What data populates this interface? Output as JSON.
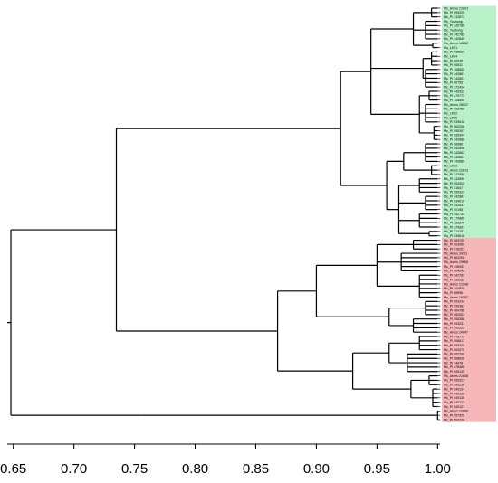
{
  "axis": {
    "ticks": [
      "0.65",
      "0.70",
      "0.75",
      "0.80",
      "0.85",
      "0.90",
      "0.95",
      "1.00"
    ],
    "tick_values": [
      0.65,
      0.7,
      0.75,
      0.8,
      0.85,
      0.9,
      0.95,
      1.0
    ],
    "range": [
      0.645,
      1.002
    ]
  },
  "colors": {
    "group_a": "#b8f0c8",
    "group_b": "#f7b6b9",
    "branch": "#000000"
  },
  "leaves": [
    {
      "label": "Ms_Ames 21823",
      "group": "a"
    },
    {
      "label": "Ms_PI 595325",
      "group": "a"
    },
    {
      "label": "Ms_PI 342873",
      "group": "a"
    },
    {
      "label": "Ms_Yuzhong",
      "group": "a"
    },
    {
      "label": "Ms_PI 342786",
      "group": "a"
    },
    {
      "label": "Ms_Yuzhong",
      "group": "a"
    },
    {
      "label": "Ms_PI 342789",
      "group": "a"
    },
    {
      "label": "Ms_PI 342849",
      "group": "a"
    },
    {
      "label": "Ms_Ames 18262",
      "group": "a"
    },
    {
      "label": "Ms_LK01",
      "group": "a"
    },
    {
      "label": "Ms_PI 535621",
      "group": "a"
    },
    {
      "label": "Ms_LK04",
      "group": "a"
    },
    {
      "label": "Ms_PI 90035",
      "group": "a"
    },
    {
      "label": "Ms_PI 90811",
      "group": "a"
    },
    {
      "label": "Ms_PI 108653",
      "group": "a"
    },
    {
      "label": "Ms_PI 342881",
      "group": "a"
    },
    {
      "label": "Ms_PI 342801",
      "group": "a"
    },
    {
      "label": "Ms_PI 90755",
      "group": "a"
    },
    {
      "label": "Ms_PI 172434",
      "group": "a"
    },
    {
      "label": "Ms_PI 442522",
      "group": "a"
    },
    {
      "label": "Ms_PI 479773",
      "group": "a"
    },
    {
      "label": "Ms_PI 108655",
      "group": "a"
    },
    {
      "label": "Ms_Ames 28037",
      "group": "a"
    },
    {
      "label": "Ms_PI 908750",
      "group": "a"
    },
    {
      "label": "Ms_LK02",
      "group": "a"
    },
    {
      "label": "Ms_LK05",
      "group": "a"
    },
    {
      "label": "Ms_PI 539611",
      "group": "a"
    },
    {
      "label": "Ms_PI 562298",
      "group": "a"
    },
    {
      "label": "Ms_PI 595397",
      "group": "a"
    },
    {
      "label": "Ms_PI 595304",
      "group": "a"
    },
    {
      "label": "Ms_PI 342888",
      "group": "a"
    },
    {
      "label": "Ms_PI 88986",
      "group": "a"
    },
    {
      "label": "Ms_PI 342896",
      "group": "a"
    },
    {
      "label": "Ms_PI 342863",
      "group": "a"
    },
    {
      "label": "Ms_PI 342801",
      "group": "a"
    },
    {
      "label": "Ms_PI 342889",
      "group": "a"
    },
    {
      "label": "Ms_LK03",
      "group": "a"
    },
    {
      "label": "Ms_Ames 22813",
      "group": "a"
    },
    {
      "label": "Ms_PI 342858",
      "group": "a"
    },
    {
      "label": "Ms_PI 342899",
      "group": "a"
    },
    {
      "label": "Ms_PI 552002",
      "group": "a"
    },
    {
      "label": "Ms_PI 31647",
      "group": "a"
    },
    {
      "label": "Ms_PI 595324",
      "group": "a"
    },
    {
      "label": "Ms_PI 342887",
      "group": "a"
    },
    {
      "label": "Ms_PI 634019",
      "group": "a"
    },
    {
      "label": "Ms_PI 342847",
      "group": "a"
    },
    {
      "label": "Ms_PI 90198",
      "group": "a"
    },
    {
      "label": "Ms_PI 342744",
      "group": "a"
    },
    {
      "label": "Ms_PI 179885",
      "group": "a"
    },
    {
      "label": "Ms_PI 132270",
      "group": "a"
    },
    {
      "label": "Ms_PI 370891",
      "group": "a"
    },
    {
      "label": "Ms_PI 314287",
      "group": "a"
    },
    {
      "label": "Ms_PI 539616",
      "group": "a"
    },
    {
      "label": "Ms_PI 583709",
      "group": "b"
    },
    {
      "label": "Ms_PI 503969",
      "group": "b"
    },
    {
      "label": "Ms_PI 578251",
      "group": "b"
    },
    {
      "label": "Ms_Ames 34111",
      "group": "b"
    },
    {
      "label": "Ms_PI 663206",
      "group": "b"
    },
    {
      "label": "Ms_Ames 29658",
      "group": "b"
    },
    {
      "label": "Ms_PI 498053",
      "group": "b"
    },
    {
      "label": "Ms_PI 504542",
      "group": "b"
    },
    {
      "label": "Ms_PI 342783",
      "group": "b"
    },
    {
      "label": "Ms_PI 595282",
      "group": "b"
    },
    {
      "label": "Ms_Ames 21248",
      "group": "b"
    },
    {
      "label": "Ms_PI 304830",
      "group": "b"
    },
    {
      "label": "Ms_PI 89596",
      "group": "b"
    },
    {
      "label": "Ms_Ames 19257",
      "group": "b"
    },
    {
      "label": "Ms_PI 593234",
      "group": "b"
    },
    {
      "label": "Ms_PI 595363",
      "group": "b"
    },
    {
      "label": "Ms_PI 464786",
      "group": "b"
    },
    {
      "label": "Ms_PI 552003",
      "group": "b"
    },
    {
      "label": "Ms_PI 595388",
      "group": "b"
    },
    {
      "label": "Ms_PI 593231",
      "group": "b"
    },
    {
      "label": "Ms_PI 595329",
      "group": "b"
    },
    {
      "label": "Ms_Ames 24047",
      "group": "b"
    },
    {
      "label": "Ms_PI 478772",
      "group": "b"
    },
    {
      "label": "Ms_PI 508617",
      "group": "b"
    },
    {
      "label": "Ms_PI 595328",
      "group": "b"
    },
    {
      "label": "Ms_PI 553070",
      "group": "b"
    },
    {
      "label": "Ms_PI 662200",
      "group": "b"
    },
    {
      "label": "Ms_PI 568838",
      "group": "b"
    },
    {
      "label": "Ms_PI 74476",
      "group": "b"
    },
    {
      "label": "Ms_PI 478466",
      "group": "b"
    },
    {
      "label": "Ms_PI 549125",
      "group": "b"
    },
    {
      "label": "Ms_Ames 21608",
      "group": "b"
    },
    {
      "label": "Ms_PI 595327",
      "group": "b"
    },
    {
      "label": "Ms_PI 593236",
      "group": "b"
    },
    {
      "label": "Ms_PI 549124",
      "group": "b"
    },
    {
      "label": "Ms_PI 549126",
      "group": "b"
    },
    {
      "label": "Ms_PI 549128",
      "group": "b"
    },
    {
      "label": "Ms_PI 549122",
      "group": "b"
    },
    {
      "label": "Ms_PI 549127",
      "group": "b"
    },
    {
      "label": "Ms_Ames 22858",
      "group": "b"
    },
    {
      "label": "Ms_PI 557525",
      "group": "b"
    },
    {
      "label": "Ms_PI 593228",
      "group": "b"
    }
  ],
  "tree": [
    0.648,
    [
      0.735,
      [
        0.92,
        [
          0.945,
          [
            0.98,
            [
              0.995,
              0,
              1,
              2
            ],
            [
              0.99,
              3,
              4,
              5,
              6,
              7
            ],
            [
              0.996,
              8,
              9
            ]
          ],
          [
            0.988,
            [
              0.995,
              10,
              11,
              12,
              13
            ],
            [
              0.99,
              14,
              15,
              16,
              17,
              18
            ]
          ],
          [
            0.985,
            [
              0.993,
              19,
              20,
              21
            ],
            [
              0.99,
              22,
              23,
              24,
              25,
              26
            ],
            [
              0.997,
              27,
              28,
              29,
              30
            ]
          ]
        ],
        [
          0.958,
          [
            0.972,
            [
              0.99,
              31,
              32,
              33,
              34,
              35
            ],
            [
              0.995,
              36,
              37,
              38
            ]
          ],
          [
            0.968,
            [
              0.985,
              39,
              40,
              41,
              42
            ],
            [
              0.99,
              43,
              44,
              45,
              46
            ],
            [
              0.985,
              47,
              48,
              49,
              50
            ],
            [
              0.993,
              51,
              52
            ]
          ]
        ]
      ],
      [
        0.868,
        [
          0.9,
          [
            0.95,
            [
              0.98,
              53,
              54,
              55
            ],
            [
              0.97,
              56,
              57,
              58,
              59,
              60
            ],
            [
              0.985,
              61,
              62,
              63,
              64,
              65,
              66
            ]
          ],
          [
            0.96,
            [
              0.99,
              67,
              68,
              69,
              70
            ],
            [
              0.98,
              71,
              72,
              73,
              74
            ]
          ]
        ],
        [
          0.93,
          [
            0.96,
            [
              0.985,
              75,
              76,
              77,
              78
            ],
            [
              0.975,
              79,
              80,
              81,
              82,
              83
            ]
          ],
          [
            0.978,
            [
              0.993,
              84,
              85,
              86
            ],
            [
              0.996,
              87,
              88,
              89,
              90,
              91
            ]
          ]
        ]
      ]
    ],
    [
      0.755,
      [
        1.0,
        92,
        93,
        94
      ]
    ]
  ]
}
